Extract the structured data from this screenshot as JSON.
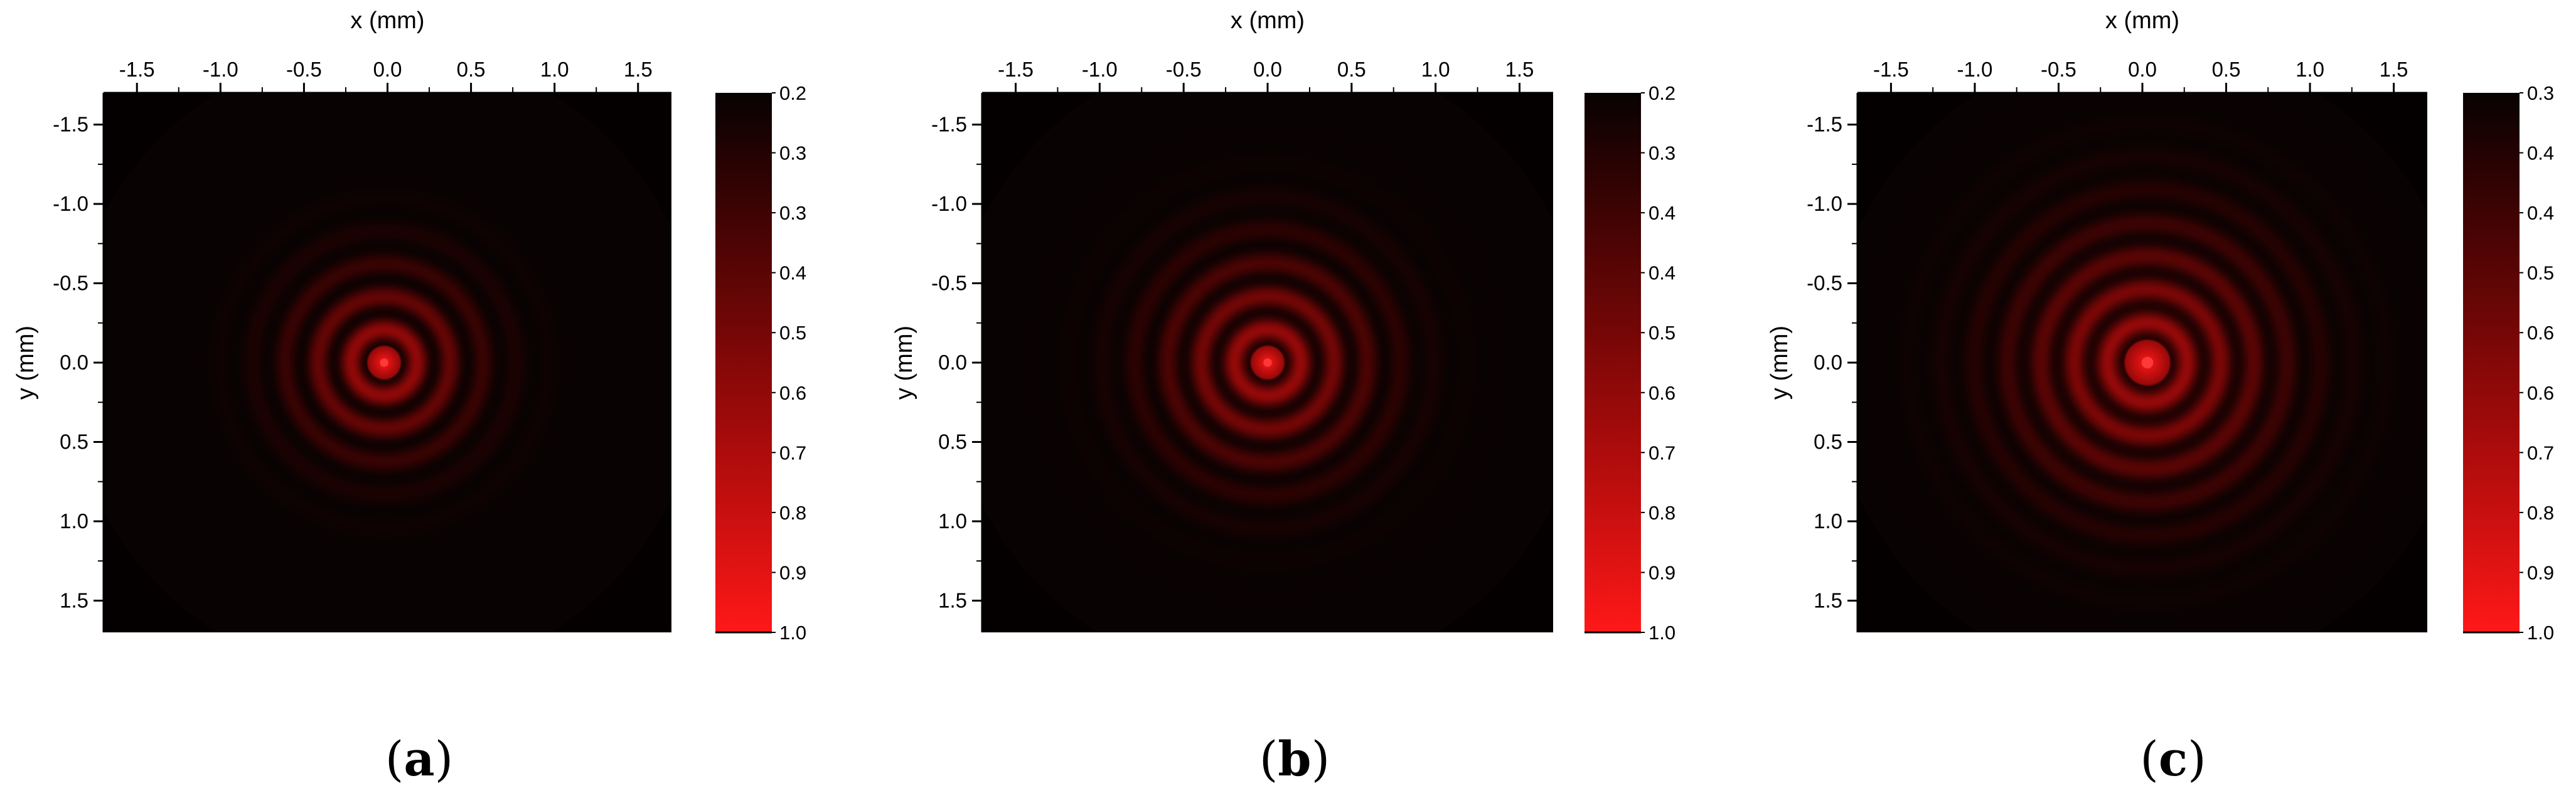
{
  "figure": {
    "colors": {
      "background": "#ffffff",
      "axis": "#000000",
      "beam_dark": "#050000",
      "beam_bright": "#ff1a1a"
    },
    "x_label": "x (mm)",
    "y_label": "y (mm)"
  },
  "chart_data": [
    {
      "type": "heatmap",
      "panel": "a",
      "caption_letter": "a",
      "caption_open": "(",
      "caption_close": ")",
      "xlabel": "x (mm)",
      "ylabel": "y (mm)",
      "xlim": [
        -1.7,
        1.7
      ],
      "ylim": [
        -1.7,
        1.7
      ],
      "x_ticks": [
        "-1.5",
        "-1.0",
        "-0.5",
        "0.0",
        "0.5",
        "1.0",
        "1.5"
      ],
      "y_ticks": [
        "-1.5",
        "-1.0",
        "-0.5",
        "0.0",
        "0.5",
        "1.0",
        "1.5"
      ],
      "colorbar_labels": [
        "0.2",
        "0.3",
        "0.3",
        "0.4",
        "0.5",
        "0.6",
        "0.7",
        "0.8",
        "0.9",
        "1.0"
      ],
      "colorbar_range": [
        0.2,
        1.0
      ],
      "beam_center": [
        -0.02,
        0.0
      ],
      "ring_spacing_mm": 0.2,
      "core_radius_mm": 0.1,
      "envelope_radius_mm": 0.55,
      "ring_contrast": 0.9
    },
    {
      "type": "heatmap",
      "panel": "b",
      "caption_letter": "b",
      "caption_open": "(",
      "caption_close": ")",
      "xlabel": "x (mm)",
      "ylabel": "y (mm)",
      "xlim": [
        -1.7,
        1.7
      ],
      "ylim": [
        -1.7,
        1.7
      ],
      "x_ticks": [
        "-1.5",
        "-1.0",
        "-0.5",
        "0.0",
        "0.5",
        "1.0",
        "1.5"
      ],
      "y_ticks": [
        "-1.5",
        "-1.0",
        "-0.5",
        "0.0",
        "0.5",
        "1.0",
        "1.5"
      ],
      "colorbar_labels": [
        "0.2",
        "0.3",
        "0.4",
        "0.4",
        "0.5",
        "0.6",
        "0.7",
        "0.8",
        "0.9",
        "1.0"
      ],
      "colorbar_range": [
        0.2,
        1.0
      ],
      "beam_center": [
        0.0,
        0.0
      ],
      "ring_spacing_mm": 0.2,
      "core_radius_mm": 0.1,
      "envelope_radius_mm": 0.65,
      "ring_contrast": 0.85
    },
    {
      "type": "heatmap",
      "panel": "c",
      "caption_letter": "c",
      "caption_open": "(",
      "caption_close": ")",
      "xlabel": "x (mm)",
      "ylabel": "y (mm)",
      "xlim": [
        -1.7,
        1.7
      ],
      "ylim": [
        -1.7,
        1.7
      ],
      "x_ticks": [
        "-1.5",
        "-1.0",
        "-0.5",
        "0.0",
        "0.5",
        "1.0",
        "1.5"
      ],
      "y_ticks": [
        "-1.5",
        "-1.0",
        "-0.5",
        "0.0",
        "0.5",
        "1.0",
        "1.5"
      ],
      "colorbar_labels": [
        "0.3",
        "0.4",
        "0.4",
        "0.5",
        "0.6",
        "0.6",
        "0.7",
        "0.8",
        "0.9",
        "1.0"
      ],
      "colorbar_range": [
        0.3,
        1.0
      ],
      "beam_center": [
        0.03,
        0.0
      ],
      "ring_spacing_mm": 0.2,
      "core_radius_mm": 0.14,
      "envelope_radius_mm": 0.8,
      "ring_contrast": 0.8
    }
  ]
}
